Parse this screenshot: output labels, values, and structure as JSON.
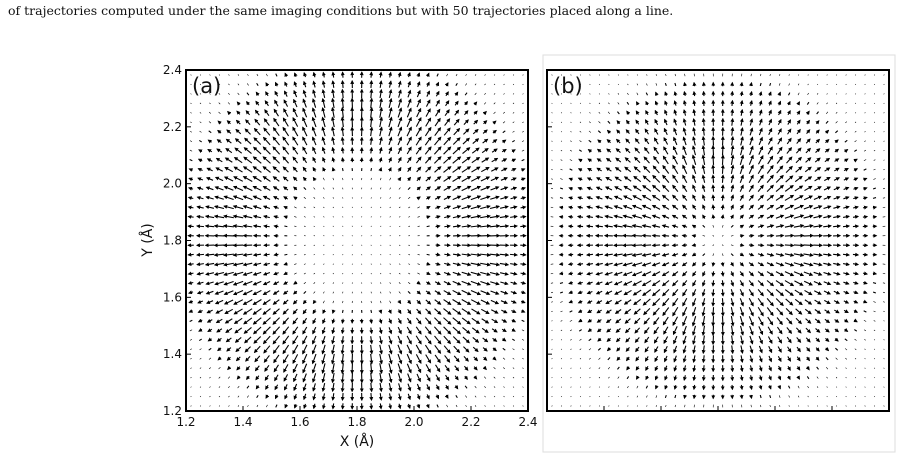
{
  "caption": "of trajectories computed under the same imaging conditions but with 50 trajectories placed along a line.",
  "figure": {
    "panels": [
      {
        "label": "(a)"
      },
      {
        "label": "(b)"
      }
    ],
    "xlabel": "X (Å)",
    "ylabel": "Y (Å)",
    "xlim": [
      1.2,
      2.4
    ],
    "ylim": [
      1.2,
      2.4
    ],
    "xticks": [
      1.2,
      1.4,
      1.6,
      1.8,
      {
        "value": 2,
        "label": "2.0"
      },
      2.2,
      2.4
    ],
    "yticks": [
      1.2,
      1.4,
      1.6,
      1.8,
      {
        "value": 2,
        "label": "2.0"
      },
      2.2,
      2.4
    ]
  }
}
